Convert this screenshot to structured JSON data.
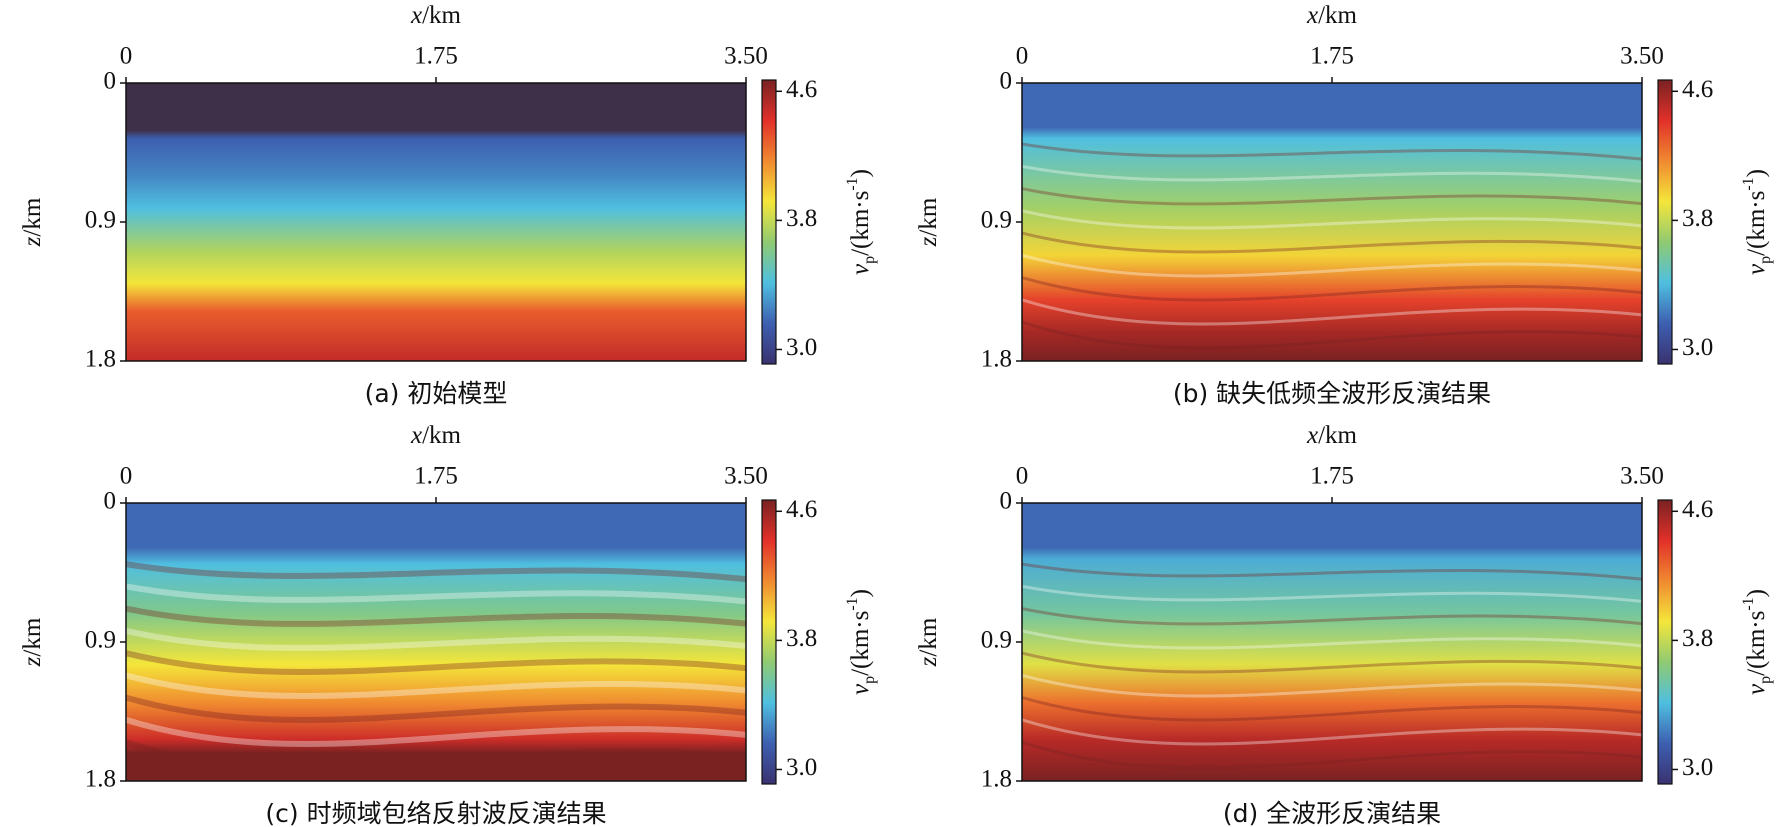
{
  "chart_data": [
    {
      "type": "heatmap",
      "caption": "(a) 初始模型",
      "xlabel": [
        "x",
        "/km"
      ],
      "ylabel": [
        "z",
        "/km"
      ],
      "xlim": [
        0,
        3.5
      ],
      "xticks": [
        0,
        1.75,
        {
          "value": 3.5,
          "label": "3.50"
        }
      ],
      "ylim": [
        0,
        1.8
      ],
      "yticks": [
        0,
        0.9,
        1.8
      ],
      "clim": [
        2.91,
        4.67
      ],
      "cticks": [
        {
          "value": 3,
          "label": "3.0"
        },
        3.8,
        4.6
      ],
      "colorbar_label": [
        "v",
        "p",
        "/(km·s",
        "-1",
        ")"
      ],
      "colormap": [
        "#3a3270",
        "#3d5fb0",
        "#4fbfe0",
        "#8fca72",
        "#f4e63a",
        "#f08a30",
        "#e2302a",
        "#7a2222"
      ]
    },
    {
      "type": "heatmap",
      "caption": "(b) 缺失低频全波形反演结果",
      "xlabel": [
        "x",
        "/km"
      ],
      "ylabel": [
        "z",
        "/km"
      ],
      "xlim": [
        0,
        3.5
      ],
      "xticks": [
        0,
        1.75,
        {
          "value": 3.5,
          "label": "3.50"
        }
      ],
      "ylim": [
        0,
        1.8
      ],
      "yticks": [
        0,
        0.9,
        1.8
      ],
      "clim": [
        2.91,
        4.67
      ],
      "cticks": [
        {
          "value": 3,
          "label": "3.0"
        },
        3.8,
        4.6
      ],
      "colorbar_label": [
        "v",
        "p",
        "/(km·s",
        "-1",
        ")"
      ],
      "colormap": [
        "#3a3270",
        "#3d5fb0",
        "#4fbfe0",
        "#8fca72",
        "#f4e63a",
        "#f08a30",
        "#e2302a",
        "#7a2222"
      ]
    },
    {
      "type": "heatmap",
      "caption": "(c) 时频域包络反射波反演结果",
      "xlabel": [
        "x",
        "/km"
      ],
      "ylabel": [
        "z",
        "/km"
      ],
      "xlim": [
        0,
        3.5
      ],
      "xticks": [
        0,
        1.75,
        {
          "value": 3.5,
          "label": "3.50"
        }
      ],
      "ylim": [
        0,
        1.8
      ],
      "yticks": [
        0,
        0.9,
        1.8
      ],
      "clim": [
        2.91,
        4.67
      ],
      "cticks": [
        {
          "value": 3,
          "label": "3.0"
        },
        3.8,
        4.6
      ],
      "colorbar_label": [
        "v",
        "p",
        "/(km·s",
        "-1",
        ")"
      ],
      "colormap": [
        "#3a3270",
        "#3d5fb0",
        "#4fbfe0",
        "#8fca72",
        "#f4e63a",
        "#f08a30",
        "#e2302a",
        "#7a2222"
      ]
    },
    {
      "type": "heatmap",
      "caption": "(d) 全波形反演结果",
      "xlabel": [
        "x",
        "/km"
      ],
      "ylabel": [
        "z",
        "/km"
      ],
      "xlim": [
        0,
        3.5
      ],
      "xticks": [
        0,
        1.75,
        {
          "value": 3.5,
          "label": "3.50"
        }
      ],
      "ylim": [
        0,
        1.8
      ],
      "yticks": [
        0,
        0.9,
        1.8
      ],
      "clim": [
        2.91,
        4.67
      ],
      "cticks": [
        {
          "value": 3,
          "label": "3.0"
        },
        3.8,
        4.6
      ],
      "colorbar_label": [
        "v",
        "p",
        "/(km·s",
        "-1",
        ")"
      ],
      "colormap": [
        "#3a3270",
        "#3d5fb0",
        "#4fbfe0",
        "#8fca72",
        "#f4e63a",
        "#f08a30",
        "#e2302a",
        "#7a2222"
      ]
    }
  ]
}
